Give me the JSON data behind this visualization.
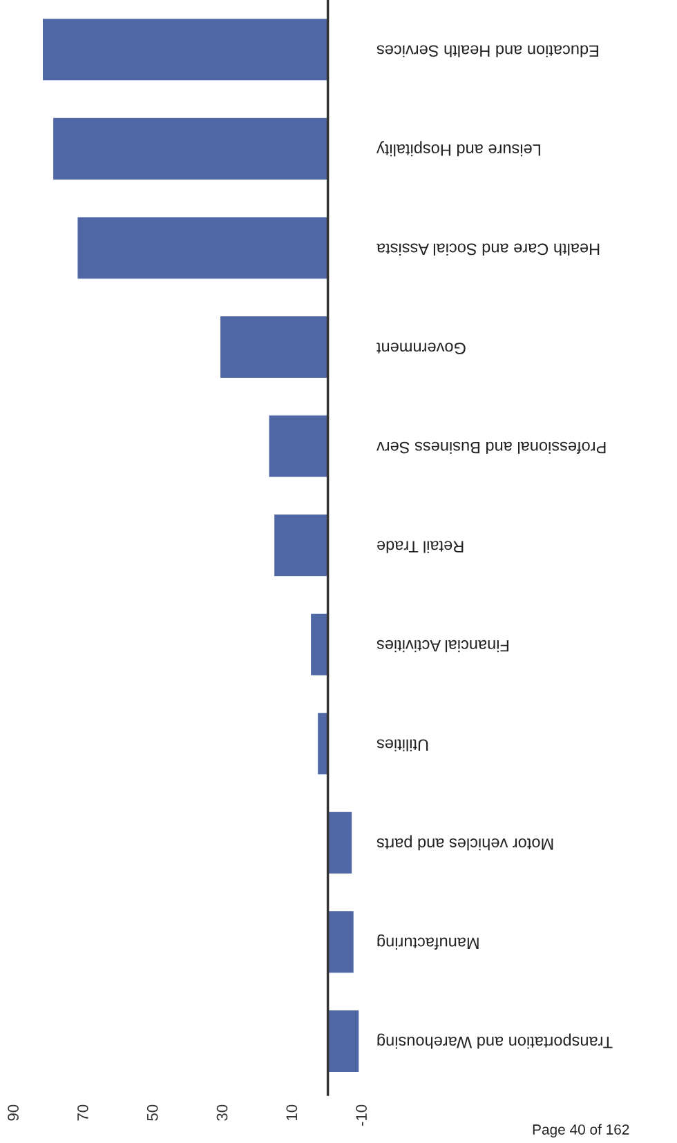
{
  "chart_data": {
    "type": "bar",
    "orientation": "horizontal",
    "categories": [
      "Education and Health Services",
      "Leisure and Hospitality",
      "Health Care and Social Assista",
      "Government",
      "Professional and Business Serv",
      "Retail Trade",
      "Financial Activities",
      "Utilities",
      "Motor vehicles and parts",
      "Manufacturing",
      "Transportation and Warehousing"
    ],
    "values": [
      82,
      79,
      72,
      31,
      17,
      15.5,
      5,
      3,
      -7,
      -7.5,
      -9
    ],
    "color": "#4f67a5",
    "xlim": [
      90,
      -10
    ],
    "xticks": [
      90,
      70,
      50,
      30,
      10,
      -10
    ],
    "grid": false,
    "annotations": [
      "Page 40 of 162"
    ]
  }
}
